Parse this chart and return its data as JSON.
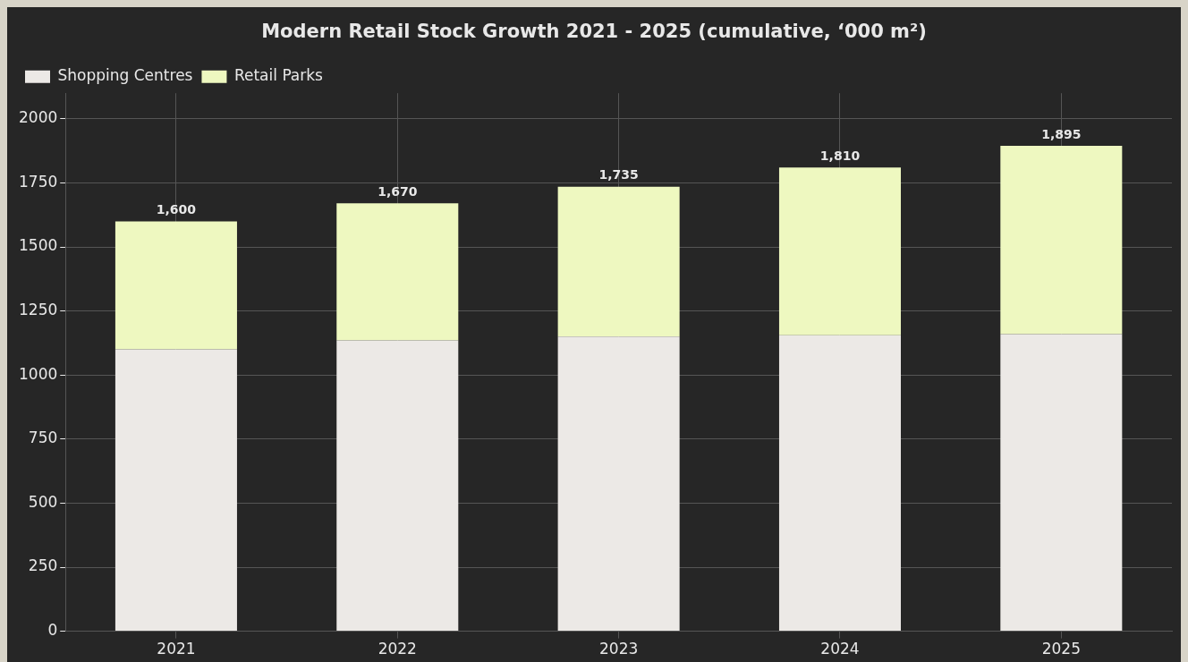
{
  "chart_data": {
    "type": "bar",
    "title": "Modern Retail Stock Growth 2021 - 2025 (cumulative, ‘000 m²)",
    "categories": [
      "2021",
      "2022",
      "2023",
      "2024",
      "2025"
    ],
    "stacked": true,
    "series": [
      {
        "name": "Shopping Centres",
        "color": "#ece9e6",
        "values": [
          1100,
          1135,
          1150,
          1155,
          1160
        ]
      },
      {
        "name": "Retail Parks",
        "color": "#eef8c0",
        "values": [
          500,
          535,
          585,
          655,
          735
        ]
      }
    ],
    "totals": [
      "1,600",
      "1,670",
      "1,735",
      "1,810",
      "1,895"
    ],
    "ylim": [
      0,
      2100
    ],
    "yticks": [
      0,
      250,
      500,
      750,
      1000,
      1250,
      1500,
      1750,
      2000
    ],
    "grid": true,
    "legend": "top left"
  }
}
